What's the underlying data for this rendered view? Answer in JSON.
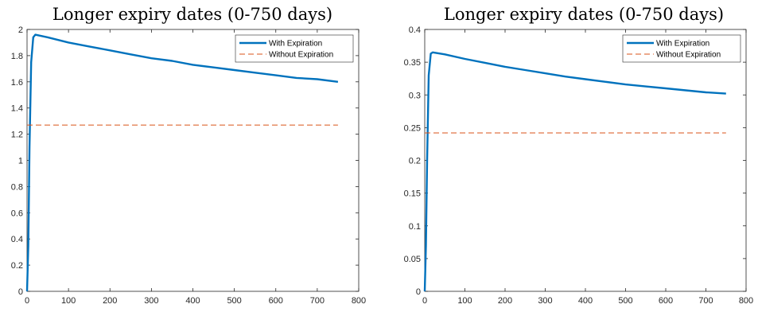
{
  "chart_data": [
    {
      "type": "line",
      "title": "Longer expiry dates (0-750 days)",
      "xlabel": "",
      "ylabel": "",
      "xlim": [
        0,
        800
      ],
      "ylim": [
        0,
        2
      ],
      "xticks": [
        0,
        100,
        200,
        300,
        400,
        500,
        600,
        700,
        800
      ],
      "yticks": [
        0,
        0.2,
        0.4,
        0.6,
        0.8,
        1,
        1.2,
        1.4,
        1.6,
        1.8,
        2
      ],
      "ytick_labels": [
        "0",
        "0.2",
        "0.4",
        "0.6",
        "0.8",
        "1",
        "1.2",
        "1.4",
        "1.6",
        "1.8",
        "2"
      ],
      "legend": "top-right",
      "grid": false,
      "series": [
        {
          "name": "With Expiration",
          "color": "#0072BD",
          "style": "solid",
          "x": [
            0,
            3,
            6,
            10,
            15,
            20,
            50,
            100,
            150,
            200,
            250,
            300,
            350,
            400,
            450,
            500,
            550,
            600,
            650,
            700,
            750
          ],
          "y": [
            0,
            0.35,
            1.1,
            1.75,
            1.94,
            1.96,
            1.94,
            1.9,
            1.87,
            1.84,
            1.81,
            1.78,
            1.76,
            1.73,
            1.71,
            1.69,
            1.67,
            1.65,
            1.63,
            1.62,
            1.6
          ]
        },
        {
          "name": "Without Expiration",
          "color": "#D95319",
          "style": "dashed",
          "x": [
            0,
            750
          ],
          "y": [
            1.27,
            1.27
          ]
        }
      ]
    },
    {
      "type": "line",
      "title": "Longer expiry dates (0-750 days)",
      "xlabel": "",
      "ylabel": "",
      "xlim": [
        0,
        800
      ],
      "ylim": [
        0,
        0.4
      ],
      "xticks": [
        0,
        100,
        200,
        300,
        400,
        500,
        600,
        700,
        800
      ],
      "yticks": [
        0,
        0.05,
        0.1,
        0.15,
        0.2,
        0.25,
        0.3,
        0.35,
        0.4
      ],
      "ytick_labels": [
        "0",
        "0.05",
        "0.1",
        "0.15",
        "0.2",
        "0.25",
        "0.3",
        "0.35",
        "0.4"
      ],
      "legend": "top-right",
      "grid": false,
      "series": [
        {
          "name": "With Expiration",
          "color": "#0072BD",
          "style": "solid",
          "x": [
            0,
            3,
            6,
            10,
            15,
            20,
            50,
            100,
            150,
            200,
            250,
            300,
            350,
            400,
            450,
            500,
            550,
            600,
            650,
            700,
            750
          ],
          "y": [
            0,
            0.07,
            0.2,
            0.33,
            0.363,
            0.365,
            0.362,
            0.355,
            0.349,
            0.343,
            0.338,
            0.333,
            0.328,
            0.324,
            0.32,
            0.316,
            0.313,
            0.31,
            0.307,
            0.304,
            0.302
          ]
        },
        {
          "name": "Without Expiration",
          "color": "#D95319",
          "style": "dashed",
          "x": [
            0,
            750
          ],
          "y": [
            0.242,
            0.242
          ]
        }
      ]
    }
  ]
}
